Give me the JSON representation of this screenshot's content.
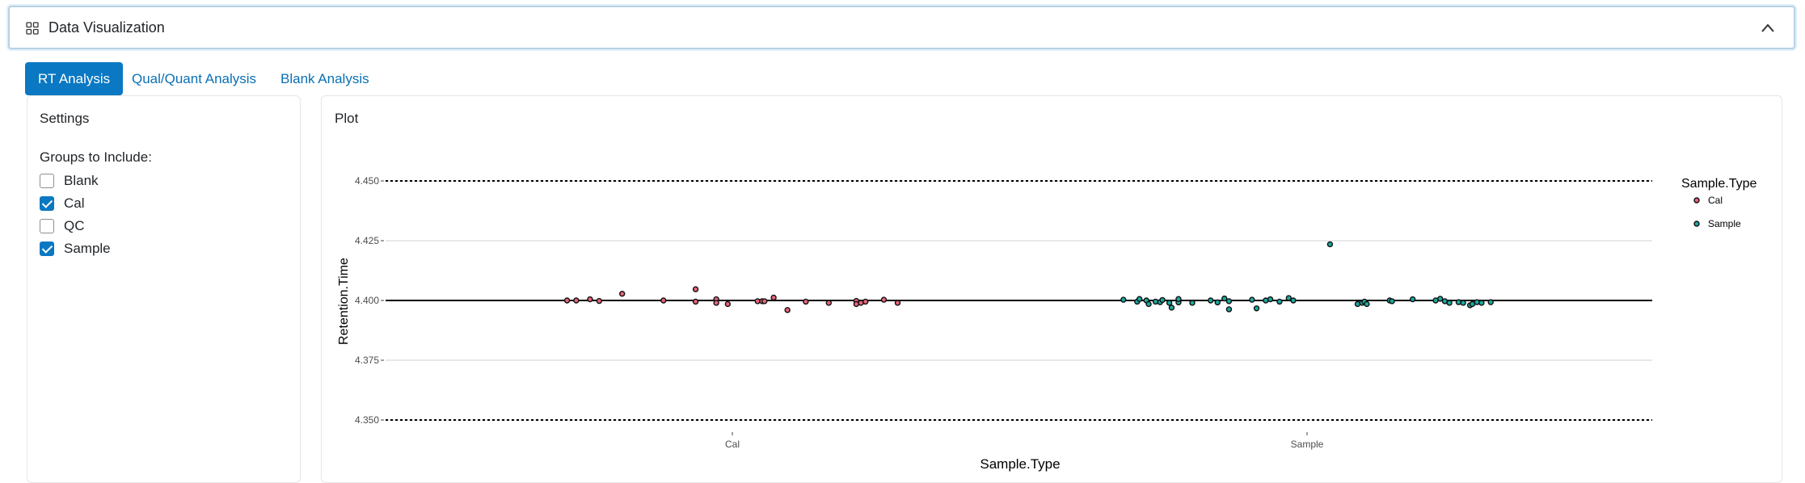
{
  "header": {
    "title": "Data Visualization",
    "grid_icon": "grid-icon",
    "collapse_icon": "chevron-up-icon"
  },
  "tabs": [
    {
      "label": "RT Analysis",
      "active": true
    },
    {
      "label": "Qual/Quant Analysis",
      "active": false
    },
    {
      "label": "Blank Analysis",
      "active": false
    }
  ],
  "settings": {
    "title": "Settings",
    "groups_label": "Groups to Include:",
    "groups": [
      {
        "label": "Blank",
        "checked": false
      },
      {
        "label": "Cal",
        "checked": true
      },
      {
        "label": "QC",
        "checked": false
      },
      {
        "label": "Sample",
        "checked": true
      }
    ]
  },
  "plot": {
    "title": "Plot"
  },
  "chart_data": {
    "type": "scatter",
    "xlabel": "Sample.Type",
    "ylabel": "Retention.Time",
    "categories": [
      "Cal",
      "Sample"
    ],
    "ylim": [
      4.35,
      4.45
    ],
    "yticks": [
      "4.350",
      "4.375",
      "4.400",
      "4.425",
      "4.450"
    ],
    "reference_lines": {
      "center": 4.4,
      "upper_dashed": 4.45,
      "lower_dashed": 4.35
    },
    "grid": true,
    "legend_title": "Sample.Type",
    "legend_position": "right",
    "series": [
      {
        "name": "Cal",
        "color": "#e8637a",
        "points": [
          {
            "x": -0.36,
            "y": 4.4
          },
          {
            "x": -0.34,
            "y": 4.4
          },
          {
            "x": -0.31,
            "y": 4.4005
          },
          {
            "x": -0.29,
            "y": 4.3998
          },
          {
            "x": -0.24,
            "y": 4.4028
          },
          {
            "x": -0.15,
            "y": 4.4
          },
          {
            "x": -0.08,
            "y": 4.4047
          },
          {
            "x": -0.08,
            "y": 4.3995
          },
          {
            "x": -0.035,
            "y": 4.4005
          },
          {
            "x": -0.035,
            "y": 4.399
          },
          {
            "x": -0.01,
            "y": 4.3985
          },
          {
            "x": 0.055,
            "y": 4.3997
          },
          {
            "x": 0.065,
            "y": 4.3997
          },
          {
            "x": 0.07,
            "y": 4.3997
          },
          {
            "x": 0.09,
            "y": 4.4012
          },
          {
            "x": 0.12,
            "y": 4.396
          },
          {
            "x": 0.16,
            "y": 4.3995
          },
          {
            "x": 0.21,
            "y": 4.399
          },
          {
            "x": 0.27,
            "y": 4.3998
          },
          {
            "x": 0.27,
            "y": 4.3985
          },
          {
            "x": 0.28,
            "y": 4.399
          },
          {
            "x": 0.29,
            "y": 4.3995
          },
          {
            "x": 0.33,
            "y": 4.4003
          },
          {
            "x": 0.36,
            "y": 4.399
          }
        ]
      },
      {
        "name": "Sample",
        "color": "#1aaa9f",
        "points": [
          {
            "x": -0.4,
            "y": 4.4003
          },
          {
            "x": -0.37,
            "y": 4.3995
          },
          {
            "x": -0.365,
            "y": 4.4006
          },
          {
            "x": -0.35,
            "y": 4.4
          },
          {
            "x": -0.345,
            "y": 4.3985
          },
          {
            "x": -0.33,
            "y": 4.3995
          },
          {
            "x": -0.32,
            "y": 4.3993
          },
          {
            "x": -0.315,
            "y": 4.4002
          },
          {
            "x": -0.3,
            "y": 4.399
          },
          {
            "x": -0.295,
            "y": 4.397
          },
          {
            "x": -0.28,
            "y": 4.3992
          },
          {
            "x": -0.28,
            "y": 4.4006
          },
          {
            "x": -0.25,
            "y": 4.399
          },
          {
            "x": -0.21,
            "y": 4.4
          },
          {
            "x": -0.195,
            "y": 4.3992
          },
          {
            "x": -0.18,
            "y": 4.4008
          },
          {
            "x": -0.17,
            "y": 4.3997
          },
          {
            "x": -0.17,
            "y": 4.3963
          },
          {
            "x": -0.12,
            "y": 4.4003
          },
          {
            "x": -0.11,
            "y": 4.3967
          },
          {
            "x": -0.09,
            "y": 4.4
          },
          {
            "x": -0.08,
            "y": 4.4005
          },
          {
            "x": -0.06,
            "y": 4.3995
          },
          {
            "x": -0.04,
            "y": 4.401
          },
          {
            "x": -0.03,
            "y": 4.4
          },
          {
            "x": 0.05,
            "y": 4.4235
          },
          {
            "x": 0.11,
            "y": 4.3985
          },
          {
            "x": 0.12,
            "y": 4.399
          },
          {
            "x": 0.125,
            "y": 4.3995
          },
          {
            "x": 0.13,
            "y": 4.3985
          },
          {
            "x": 0.18,
            "y": 4.4
          },
          {
            "x": 0.185,
            "y": 4.3997
          },
          {
            "x": 0.23,
            "y": 4.4005
          },
          {
            "x": 0.28,
            "y": 4.4
          },
          {
            "x": 0.29,
            "y": 4.4007
          },
          {
            "x": 0.3,
            "y": 4.3997
          },
          {
            "x": 0.31,
            "y": 4.399
          },
          {
            "x": 0.33,
            "y": 4.3993
          },
          {
            "x": 0.34,
            "y": 4.399
          },
          {
            "x": 0.355,
            "y": 4.398
          },
          {
            "x": 0.36,
            "y": 4.3985
          },
          {
            "x": 0.37,
            "y": 4.3993
          },
          {
            "x": 0.38,
            "y": 4.399
          },
          {
            "x": 0.4,
            "y": 4.3993
          }
        ]
      }
    ]
  }
}
